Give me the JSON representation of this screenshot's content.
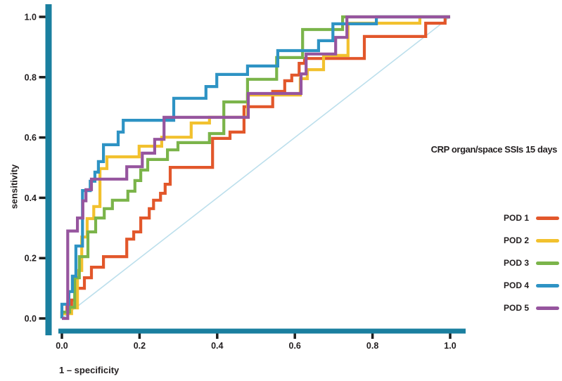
{
  "title": "CRP organ/space SSIs 15 days",
  "axes": {
    "x_label": "1 – specificity",
    "y_label": "sensitivity",
    "x_tick_labels": [
      "0.0",
      "0.2",
      "0.4",
      "0.6",
      "0.8",
      "1.0"
    ],
    "x_tick_values": [
      0,
      0.2,
      0.4,
      0.6,
      0.8,
      1.0
    ],
    "y_tick_labels": [
      "0.0",
      "0.2",
      "0.4",
      "0.6",
      "0.8",
      "1.0"
    ],
    "y_tick_values": [
      0,
      0.2,
      0.4,
      0.6,
      0.8,
      1.0
    ]
  },
  "colors": {
    "axis_bar": "#1A7F9F",
    "tick_mark": "#1e1e1e",
    "text": "#231f20",
    "diagonal": "#BCDFEC",
    "background": "#ffffff"
  },
  "legend": {
    "position": "right",
    "items": [
      {
        "label": "POD 1",
        "color": "#E2572B"
      },
      {
        "label": "POD 2",
        "color": "#F2C12E"
      },
      {
        "label": "POD 3",
        "color": "#7BB44A"
      },
      {
        "label": "POD 4",
        "color": "#2E93C4"
      },
      {
        "label": "POD 5",
        "color": "#96559E"
      }
    ]
  },
  "chart_data": {
    "type": "line",
    "subtype": "roc_step_curves",
    "title": "CRP organ/space SSIs 15 days",
    "xlabel": "1 – specificity",
    "ylabel": "sensitivity",
    "xlim": [
      0,
      1
    ],
    "ylim": [
      0,
      1
    ],
    "grid": false,
    "legend_position": "right",
    "diagonal_reference": true,
    "series": [
      {
        "name": "POD 1",
        "color": "#E2572B",
        "points": [
          [
            0,
            0
          ],
          [
            0,
            0.019
          ],
          [
            0.013,
            0.019
          ],
          [
            0.013,
            0.04
          ],
          [
            0.025,
            0.04
          ],
          [
            0.025,
            0.061
          ],
          [
            0.038,
            0.061
          ],
          [
            0.038,
            0.1
          ],
          [
            0.058,
            0.1
          ],
          [
            0.058,
            0.135
          ],
          [
            0.076,
            0.135
          ],
          [
            0.076,
            0.17
          ],
          [
            0.107,
            0.17
          ],
          [
            0.107,
            0.205
          ],
          [
            0.167,
            0.205
          ],
          [
            0.167,
            0.263
          ],
          [
            0.185,
            0.263
          ],
          [
            0.185,
            0.287
          ],
          [
            0.203,
            0.287
          ],
          [
            0.203,
            0.333
          ],
          [
            0.225,
            0.333
          ],
          [
            0.225,
            0.364
          ],
          [
            0.236,
            0.364
          ],
          [
            0.236,
            0.392
          ],
          [
            0.254,
            0.392
          ],
          [
            0.254,
            0.415
          ],
          [
            0.266,
            0.415
          ],
          [
            0.266,
            0.445
          ],
          [
            0.279,
            0.445
          ],
          [
            0.279,
            0.501
          ],
          [
            0.388,
            0.501
          ],
          [
            0.388,
            0.597
          ],
          [
            0.433,
            0.597
          ],
          [
            0.433,
            0.618
          ],
          [
            0.469,
            0.618
          ],
          [
            0.469,
            0.702
          ],
          [
            0.543,
            0.702
          ],
          [
            0.543,
            0.753
          ],
          [
            0.574,
            0.753
          ],
          [
            0.574,
            0.788
          ],
          [
            0.592,
            0.788
          ],
          [
            0.592,
            0.807
          ],
          [
            0.611,
            0.807
          ],
          [
            0.611,
            0.846
          ],
          [
            0.625,
            0.846
          ],
          [
            0.625,
            0.862
          ],
          [
            0.638,
            0.862
          ],
          [
            0.779,
            0.862
          ],
          [
            0.779,
            0.935
          ],
          [
            0.937,
            0.935
          ],
          [
            0.937,
            0.979
          ],
          [
            0.987,
            0.979
          ],
          [
            0.987,
            1
          ],
          [
            1,
            1
          ]
        ]
      },
      {
        "name": "POD 2",
        "color": "#F2C12E",
        "points": [
          [
            0,
            0
          ],
          [
            0,
            0.016
          ],
          [
            0.025,
            0.016
          ],
          [
            0.025,
            0.035
          ],
          [
            0.04,
            0.035
          ],
          [
            0.04,
            0.159
          ],
          [
            0.051,
            0.159
          ],
          [
            0.051,
            0.27
          ],
          [
            0.065,
            0.27
          ],
          [
            0.065,
            0.331
          ],
          [
            0.082,
            0.331
          ],
          [
            0.082,
            0.371
          ],
          [
            0.098,
            0.371
          ],
          [
            0.098,
            0.497
          ],
          [
            0.116,
            0.497
          ],
          [
            0.116,
            0.536
          ],
          [
            0.199,
            0.536
          ],
          [
            0.199,
            0.571
          ],
          [
            0.257,
            0.571
          ],
          [
            0.257,
            0.601
          ],
          [
            0.333,
            0.601
          ],
          [
            0.333,
            0.648
          ],
          [
            0.38,
            0.648
          ],
          [
            0.38,
            0.667
          ],
          [
            0.478,
            0.667
          ],
          [
            0.478,
            0.741
          ],
          [
            0.614,
            0.741
          ],
          [
            0.614,
            0.795
          ],
          [
            0.632,
            0.795
          ],
          [
            0.632,
            0.825
          ],
          [
            0.674,
            0.825
          ],
          [
            0.674,
            0.872
          ],
          [
            0.737,
            0.872
          ],
          [
            0.737,
            0.979
          ],
          [
            0.922,
            0.979
          ],
          [
            0.922,
            1
          ],
          [
            1,
            1
          ]
        ]
      },
      {
        "name": "POD 3",
        "color": "#7BB44A",
        "points": [
          [
            0,
            0
          ],
          [
            0,
            0.021
          ],
          [
            0.02,
            0.021
          ],
          [
            0.02,
            0.037
          ],
          [
            0.033,
            0.037
          ],
          [
            0.033,
            0.135
          ],
          [
            0.045,
            0.135
          ],
          [
            0.045,
            0.205
          ],
          [
            0.067,
            0.205
          ],
          [
            0.067,
            0.287
          ],
          [
            0.087,
            0.287
          ],
          [
            0.087,
            0.333
          ],
          [
            0.109,
            0.333
          ],
          [
            0.109,
            0.364
          ],
          [
            0.13,
            0.364
          ],
          [
            0.13,
            0.392
          ],
          [
            0.17,
            0.392
          ],
          [
            0.17,
            0.422
          ],
          [
            0.188,
            0.422
          ],
          [
            0.188,
            0.457
          ],
          [
            0.203,
            0.457
          ],
          [
            0.203,
            0.492
          ],
          [
            0.221,
            0.492
          ],
          [
            0.221,
            0.527
          ],
          [
            0.272,
            0.527
          ],
          [
            0.272,
            0.559
          ],
          [
            0.299,
            0.559
          ],
          [
            0.299,
            0.583
          ],
          [
            0.38,
            0.583
          ],
          [
            0.38,
            0.613
          ],
          [
            0.417,
            0.613
          ],
          [
            0.417,
            0.718
          ],
          [
            0.478,
            0.718
          ],
          [
            0.478,
            0.793
          ],
          [
            0.553,
            0.793
          ],
          [
            0.553,
            0.865
          ],
          [
            0.62,
            0.865
          ],
          [
            0.62,
            0.958
          ],
          [
            0.723,
            0.958
          ],
          [
            0.723,
            1
          ],
          [
            1,
            1
          ]
        ]
      },
      {
        "name": "POD 4",
        "color": "#2E93C4",
        "points": [
          [
            0,
            0
          ],
          [
            0,
            0.047
          ],
          [
            0.018,
            0.047
          ],
          [
            0.018,
            0.089
          ],
          [
            0.027,
            0.089
          ],
          [
            0.027,
            0.14
          ],
          [
            0.036,
            0.14
          ],
          [
            0.036,
            0.24
          ],
          [
            0.053,
            0.24
          ],
          [
            0.053,
            0.424
          ],
          [
            0.073,
            0.424
          ],
          [
            0.073,
            0.455
          ],
          [
            0.085,
            0.455
          ],
          [
            0.085,
            0.485
          ],
          [
            0.094,
            0.485
          ],
          [
            0.094,
            0.52
          ],
          [
            0.107,
            0.52
          ],
          [
            0.107,
            0.576
          ],
          [
            0.145,
            0.576
          ],
          [
            0.145,
            0.618
          ],
          [
            0.158,
            0.618
          ],
          [
            0.158,
            0.657
          ],
          [
            0.288,
            0.657
          ],
          [
            0.288,
            0.73
          ],
          [
            0.371,
            0.73
          ],
          [
            0.371,
            0.769
          ],
          [
            0.399,
            0.769
          ],
          [
            0.399,
            0.809
          ],
          [
            0.478,
            0.809
          ],
          [
            0.478,
            0.837
          ],
          [
            0.556,
            0.837
          ],
          [
            0.556,
            0.888
          ],
          [
            0.661,
            0.888
          ],
          [
            0.661,
            0.921
          ],
          [
            0.698,
            0.921
          ],
          [
            0.698,
            0.977
          ],
          [
            0.81,
            0.977
          ],
          [
            0.81,
            1
          ],
          [
            1,
            1
          ]
        ]
      },
      {
        "name": "POD 5",
        "color": "#96559E",
        "points": [
          [
            0,
            0
          ],
          [
            0.015,
            0
          ],
          [
            0.015,
            0.29
          ],
          [
            0.04,
            0.29
          ],
          [
            0.04,
            0.333
          ],
          [
            0.054,
            0.333
          ],
          [
            0.054,
            0.39
          ],
          [
            0.062,
            0.39
          ],
          [
            0.062,
            0.427
          ],
          [
            0.076,
            0.427
          ],
          [
            0.076,
            0.462
          ],
          [
            0.167,
            0.462
          ],
          [
            0.167,
            0.503
          ],
          [
            0.207,
            0.503
          ],
          [
            0.207,
            0.548
          ],
          [
            0.239,
            0.548
          ],
          [
            0.239,
            0.594
          ],
          [
            0.263,
            0.594
          ],
          [
            0.263,
            0.667
          ],
          [
            0.48,
            0.667
          ],
          [
            0.48,
            0.746
          ],
          [
            0.616,
            0.746
          ],
          [
            0.616,
            0.811
          ],
          [
            0.629,
            0.811
          ],
          [
            0.629,
            0.877
          ],
          [
            0.705,
            0.877
          ],
          [
            0.705,
            0.932
          ],
          [
            0.734,
            0.932
          ],
          [
            0.734,
            1
          ],
          [
            1,
            1
          ]
        ]
      }
    ]
  }
}
